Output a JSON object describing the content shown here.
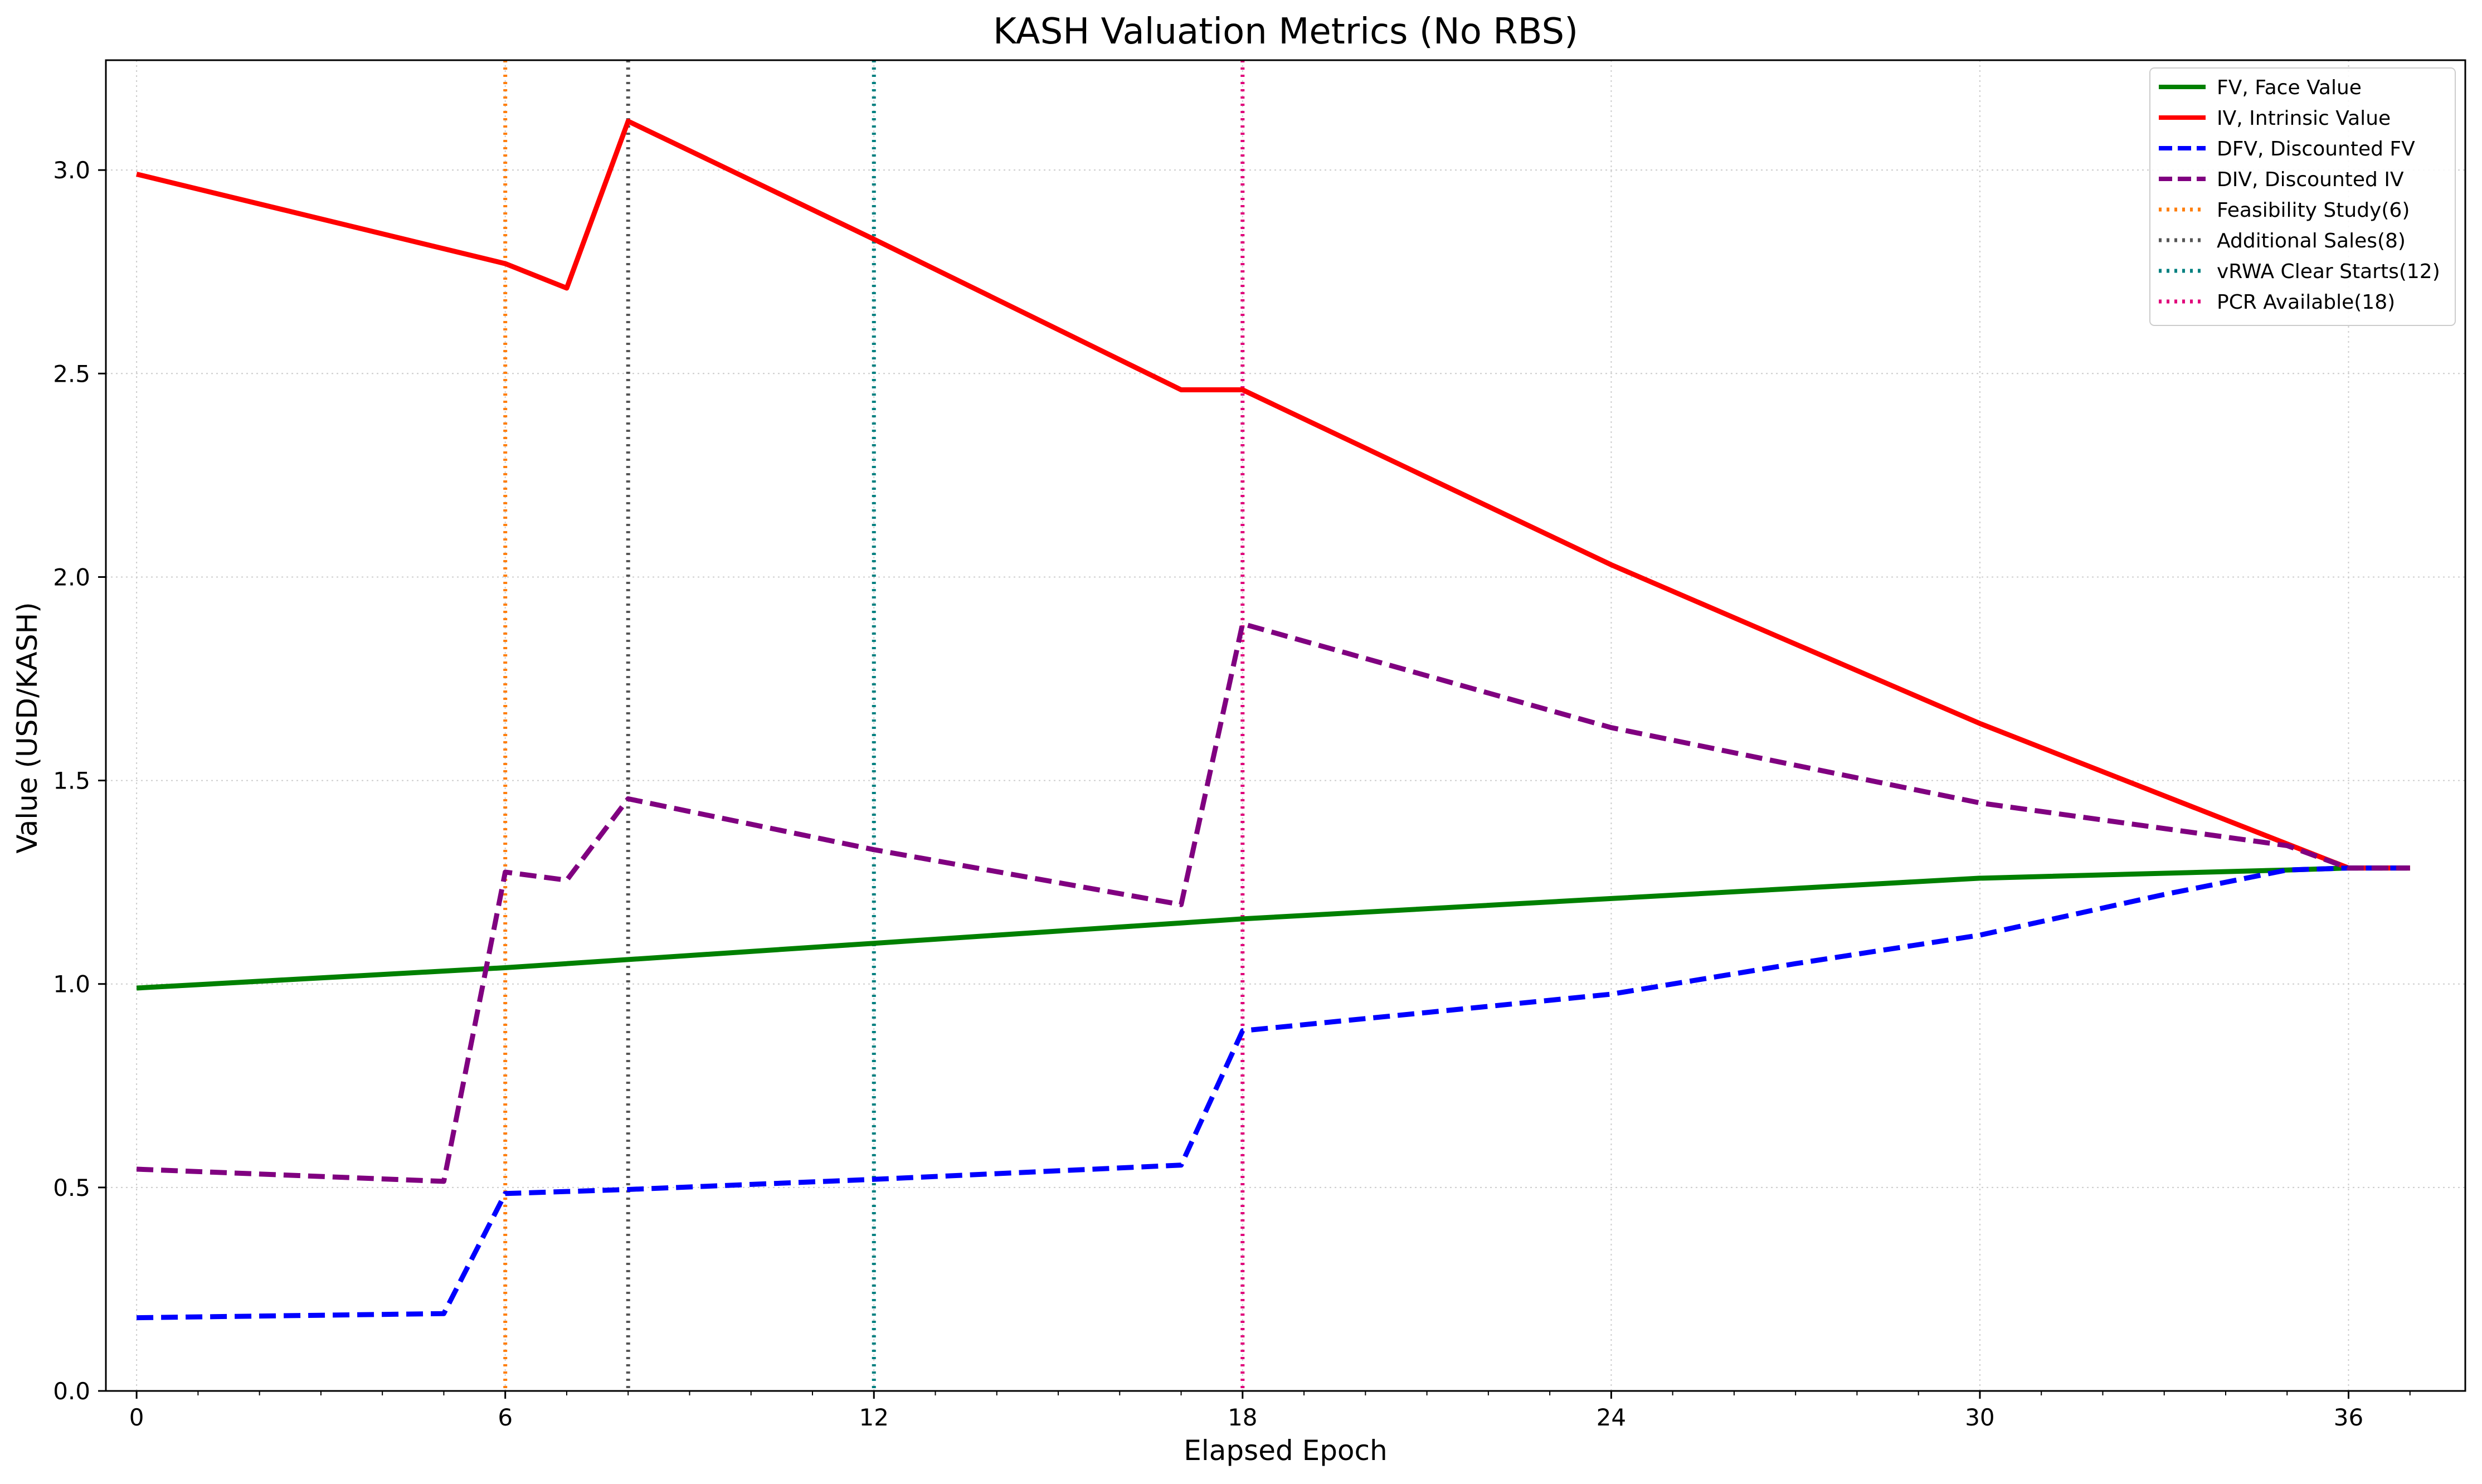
{
  "chart_data": {
    "type": "line",
    "title": "KASH Valuation Metrics (No RBS)",
    "xlabel": "Elapsed Epoch",
    "ylabel": "Value (USD/KASH)",
    "xlim": [
      -0.5,
      37.9
    ],
    "ylim": [
      0,
      3.27
    ],
    "xticks": [
      0,
      6,
      12,
      18,
      24,
      30,
      36
    ],
    "yticks": [
      0.0,
      0.5,
      1.0,
      1.5,
      2.0,
      2.5,
      3.0
    ],
    "ytick_labels": [
      "0.0",
      "0.5",
      "1.0",
      "1.5",
      "2.0",
      "2.5",
      "3.0"
    ],
    "grid": true,
    "legend_position": "top-right",
    "series": [
      {
        "name": "FV, Face Value",
        "color": "#008000",
        "style": "solid",
        "x": [
          0,
          6,
          12,
          17,
          18,
          24,
          30,
          35,
          36,
          37
        ],
        "y": [
          0.99,
          1.04,
          1.1,
          1.15,
          1.16,
          1.21,
          1.26,
          1.28,
          1.285,
          1.285
        ]
      },
      {
        "name": "IV, Intrinsic Value",
        "color": "#ff0000",
        "style": "solid",
        "x": [
          0,
          6,
          7,
          8,
          12,
          17,
          18,
          24,
          30,
          36,
          37
        ],
        "y": [
          2.99,
          2.77,
          2.71,
          3.12,
          2.83,
          2.46,
          2.46,
          2.03,
          1.64,
          1.285,
          1.285
        ]
      },
      {
        "name": "DFV, Discounted FV",
        "color": "#0000ff",
        "style": "dashed",
        "x": [
          0,
          5,
          6,
          8,
          12,
          17,
          18,
          24,
          27,
          30,
          33,
          35,
          36,
          37
        ],
        "y": [
          0.18,
          0.19,
          0.485,
          0.495,
          0.52,
          0.555,
          0.885,
          0.975,
          1.05,
          1.12,
          1.22,
          1.28,
          1.285,
          1.285
        ]
      },
      {
        "name": "DIV, Discounted IV",
        "color": "#800080",
        "style": "dashed",
        "x": [
          0,
          5,
          6,
          7,
          8,
          12,
          17,
          18,
          24,
          30,
          35,
          36,
          37
        ],
        "y": [
          0.545,
          0.515,
          1.275,
          1.255,
          1.455,
          1.33,
          1.195,
          1.885,
          1.63,
          1.445,
          1.34,
          1.285,
          1.285
        ]
      }
    ],
    "markers": [
      {
        "name": "Feasibility Study(6)",
        "x": 6,
        "color": "#ff7f0e"
      },
      {
        "name": "Additional Sales(8)",
        "x": 8,
        "color": "#555555"
      },
      {
        "name": "vRWA Clear Starts(12)",
        "x": 12,
        "color": "#008080"
      },
      {
        "name": "PCR Available(18)",
        "x": 18,
        "color": "#e0007a"
      }
    ]
  }
}
